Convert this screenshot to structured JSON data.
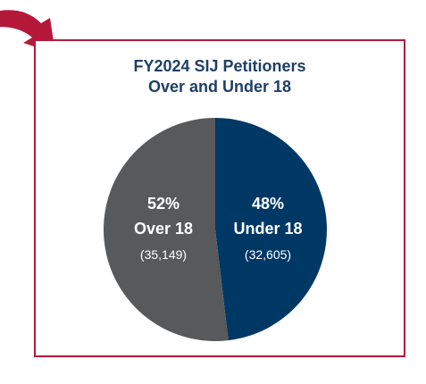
{
  "colors": {
    "border": "#b5193a",
    "arrow": "#b5193a",
    "title": "#1e3f66",
    "over18": "#58595b",
    "under18": "#003865",
    "label_text": "#ffffff"
  },
  "icons": {
    "arrow": "curved-arrow-icon"
  },
  "chart_data": {
    "type": "pie",
    "title_lines": [
      "FY2024 SIJ Petitioners",
      "Over and Under 18"
    ],
    "slices": [
      {
        "percent_label": "48%",
        "label": "Under 18",
        "count_label": "(32,605)",
        "value": 32605,
        "percent": 48
      },
      {
        "percent_label": "52%",
        "label": "Over 18",
        "count_label": "(35,149)",
        "value": 35149,
        "percent": 52
      }
    ]
  }
}
